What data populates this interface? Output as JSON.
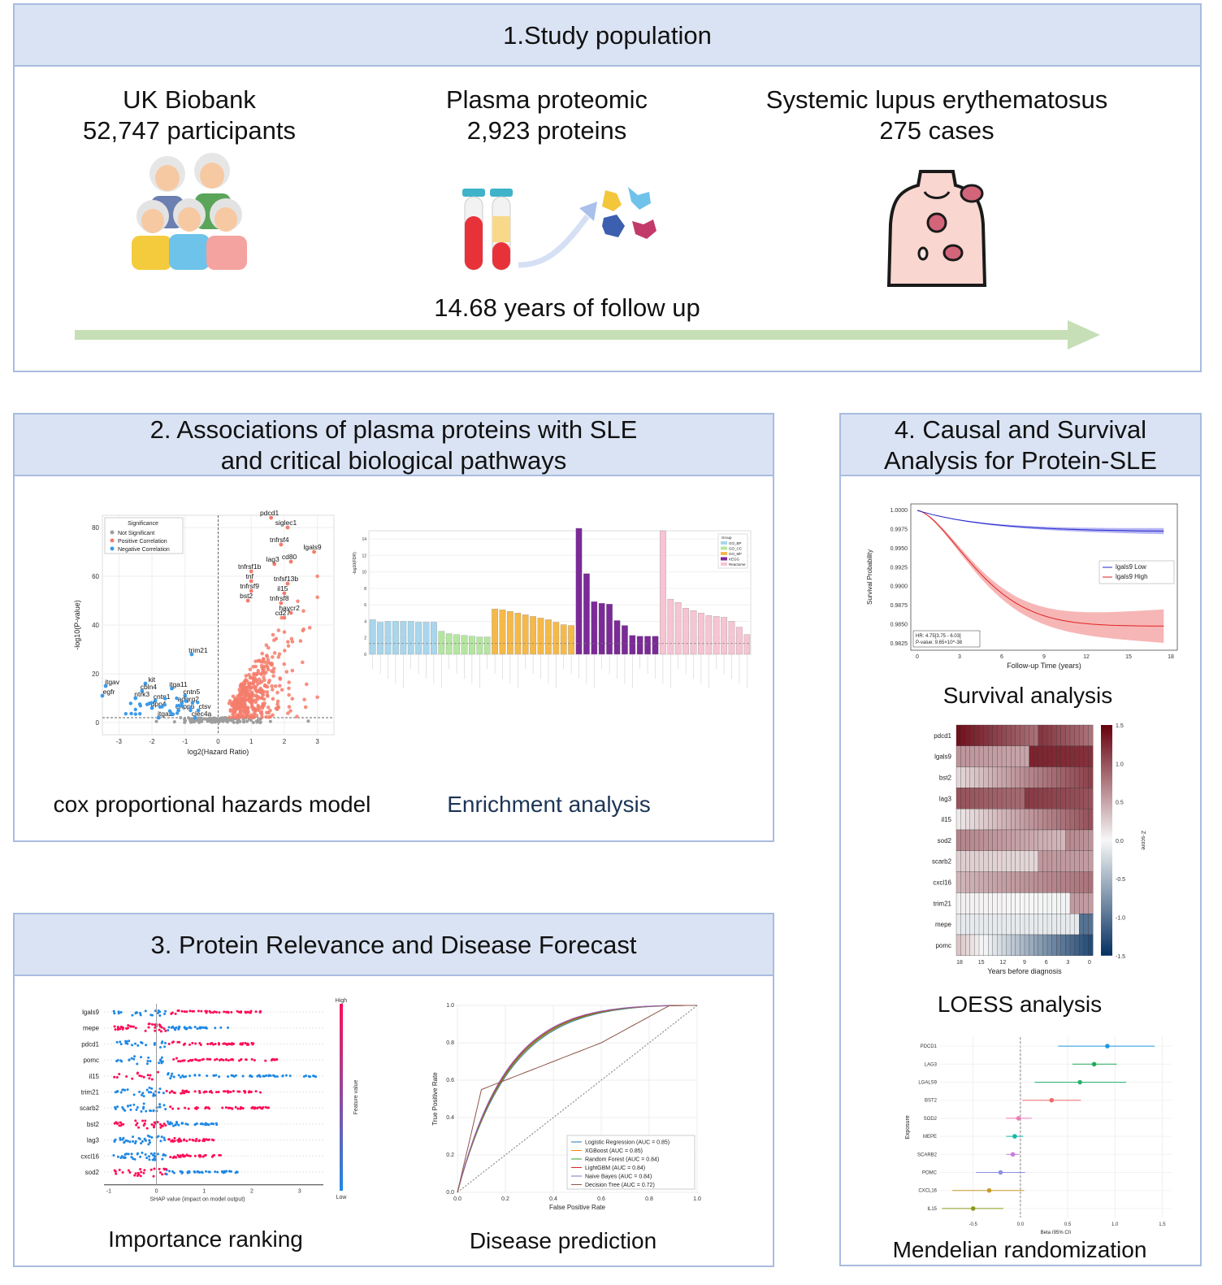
{
  "section1": {
    "title": "1.Study population",
    "biobank_line1": "UK Biobank",
    "biobank_line2": "52,747 participants",
    "proteomic_line1": "Plasma proteomic",
    "proteomic_line2": "2,923 proteins",
    "sle_line1": "Systemic lupus erythematosus",
    "sle_line2": "275 cases",
    "followup": "14.68 years of follow up"
  },
  "section2": {
    "title_line1": "2. Associations of plasma proteins with SLE",
    "title_line2": "and critical biological pathways",
    "volcano_caption": "cox proportional hazards model",
    "enrichment_caption": "Enrichment analysis",
    "volcano": {
      "xlabel": "log2(Hazard Ratio)",
      "ylabel": "-log10(P-value)",
      "legend_title": "Significance",
      "legend": [
        "Not Significant",
        "Positive Correlation",
        "Negative Correlation"
      ],
      "xticks": [
        "-3",
        "-2",
        "-1",
        "0",
        "1",
        "2",
        "3"
      ],
      "yticks": [
        "0",
        "20",
        "40",
        "60",
        "80"
      ],
      "labels_pos": [
        "pdcd1",
        "siglec1",
        "tnfrsf4",
        "lgals9",
        "lag3",
        "cd80",
        "tnfrsf1b",
        "tnf",
        "tnfsf13b",
        "tnfrsf9",
        "il15",
        "bst2",
        "tnfrsf8",
        "havcr2",
        "cd27"
      ],
      "labels_neg": [
        "trim21",
        "kit",
        "itgav",
        "itga11",
        "cbln4",
        "egfr",
        "cntn5",
        "ntrk3",
        "cntn1",
        "adgrg2",
        "dpp4",
        "enpp6",
        "ctsv",
        "itga2",
        "clec4a"
      ]
    },
    "enrichment": {
      "ylabel": "-log10(FDR)",
      "legend_title": "Group",
      "legend": [
        "GO_BP",
        "GO_CC",
        "GO_MF",
        "KEGG",
        "Reactome"
      ],
      "yticks": [
        "0",
        "2",
        "4",
        "6",
        "8",
        "10",
        "12",
        "14"
      ]
    }
  },
  "section3": {
    "title": "3. Protein Relevance and Disease Forecast",
    "shap_caption": "Importance ranking",
    "roc_caption": "Disease prediction",
    "shap": {
      "features": [
        "lgals9",
        "mepe",
        "pdcd1",
        "pomc",
        "il15",
        "trim21",
        "scarb2",
        "bst2",
        "lag3",
        "cxcl16",
        "sod2"
      ],
      "xlabel": "SHAP value (impact on model output)",
      "colorbar_label": "Feature value",
      "high": "High",
      "low": "Low",
      "xticks": [
        "-1",
        "0",
        "1",
        "2",
        "3"
      ]
    },
    "roc": {
      "xlabel": "False Positive Rate",
      "ylabel": "True Positive Rate",
      "ticks": [
        "0.0",
        "0.2",
        "0.4",
        "0.6",
        "0.8",
        "1.0"
      ],
      "models": [
        {
          "label": "Logistic Regression (AUC = 0.85)",
          "color": "#1f77b4",
          "auc": 0.85
        },
        {
          "label": "XGBoost (AUC = 0.85)",
          "color": "#ff7f0e",
          "auc": 0.85
        },
        {
          "label": "Random Forest (AUC = 0.84)",
          "color": "#2ca02c",
          "auc": 0.84
        },
        {
          "label": "LightGBM (AUC = 0.84)",
          "color": "#d62728",
          "auc": 0.84
        },
        {
          "label": "Naive Bayes (AUC = 0.84)",
          "color": "#9467bd",
          "auc": 0.84
        },
        {
          "label": "Decision Tree (AUC = 0.72)",
          "color": "#8c564b",
          "auc": 0.72
        }
      ]
    }
  },
  "section4": {
    "title_line1": "4. Causal and Survival",
    "title_line2": "Analysis for Protein-SLE",
    "survival_caption": "Survival analysis",
    "loess_caption": "LOESS analysis",
    "mr_caption": "Mendelian randomization",
    "survival": {
      "ylabel": "Survival Probability",
      "xlabel": "Follow-up Time (years)",
      "yticks": [
        "1.0000",
        "0.9975",
        "0.9950",
        "0.9925",
        "0.9900",
        "0.9875",
        "0.9850",
        "0.9825"
      ],
      "xticks": [
        "0",
        "3",
        "6",
        "9",
        "12",
        "15",
        "18"
      ],
      "legend_low": "lgals9 Low",
      "legend_high": "lgals9 High",
      "hr": "HR: 4.75[3.75 - 6.03]",
      "pvalue": "P-value: 9.65×10^-38"
    },
    "loess": {
      "proteins": [
        "pdcd1",
        "lgals9",
        "bst2",
        "lag3",
        "il15",
        "sod2",
        "scarb2",
        "cxcl16",
        "trim21",
        "mepe",
        "pomc"
      ],
      "xlabel": "Years before diagnosis",
      "xticks": [
        "18",
        "15",
        "12",
        "9",
        "6",
        "3",
        "0"
      ],
      "colorbar_ticks": [
        "1.5",
        "1.0",
        "0.5",
        "0.0",
        "-0.5",
        "-1.0",
        "-1.5"
      ],
      "colorbar_label": "Z-score"
    },
    "mr": {
      "ylabel": "Exposure",
      "xlabel": "Beta (95% CI)",
      "xticks": [
        "-0.5",
        "0.0",
        "0.5",
        "1.0",
        "1.5"
      ],
      "rows": [
        {
          "name": "PDCD1",
          "beta": 0.92,
          "lo": 0.4,
          "hi": 1.42,
          "color": "#1e9be0"
        },
        {
          "name": "LAG3",
          "beta": 0.78,
          "lo": 0.55,
          "hi": 1.02,
          "color": "#22a85a"
        },
        {
          "name": "LGALS9",
          "beta": 0.63,
          "lo": 0.15,
          "hi": 1.12,
          "color": "#26b36f"
        },
        {
          "name": "BST2",
          "beta": 0.33,
          "lo": 0.02,
          "hi": 0.64,
          "color": "#f06a6a"
        },
        {
          "name": "SOD2",
          "beta": -0.02,
          "lo": -0.15,
          "hi": 0.12,
          "color": "#f07ab8"
        },
        {
          "name": "MEPE",
          "beta": -0.06,
          "lo": -0.15,
          "hi": 0.03,
          "color": "#19b8a8"
        },
        {
          "name": "SCARB2",
          "beta": -0.08,
          "lo": -0.15,
          "hi": -0.01,
          "color": "#c77be0"
        },
        {
          "name": "POMC",
          "beta": -0.21,
          "lo": -0.47,
          "hi": 0.05,
          "color": "#8f8fe6"
        },
        {
          "name": "CXCL16",
          "beta": -0.33,
          "lo": -0.72,
          "hi": 0.04,
          "color": "#c79b2b"
        },
        {
          "name": "IL15",
          "beta": -0.5,
          "lo": -0.83,
          "hi": -0.18,
          "color": "#8c9a1a"
        }
      ]
    }
  }
}
